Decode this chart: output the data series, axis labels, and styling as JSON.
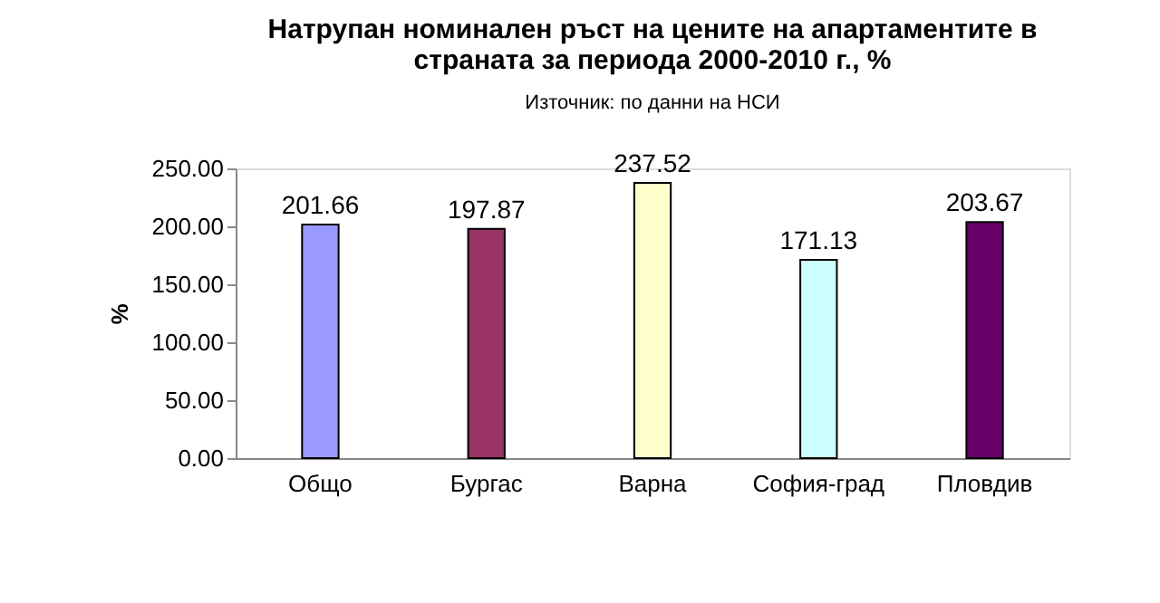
{
  "chart_data": {
    "type": "bar",
    "title": "Натрупан номинален ръст на цените на апартаментите в страната за периода 2000-2010 г., %",
    "subtitle": "Източник: по данни на НСИ",
    "ylabel": "%",
    "categories": [
      "Общо",
      "Бургас",
      "Варна",
      "София-град",
      "Пловдив"
    ],
    "values": [
      201.66,
      197.87,
      237.52,
      171.13,
      203.67
    ],
    "colors": [
      "#9999ff",
      "#993366",
      "#ffffcc",
      "#ccffff",
      "#660066"
    ],
    "ylim": [
      0,
      250
    ],
    "yticks": [
      {
        "value": 0,
        "label": "0.00"
      },
      {
        "value": 50,
        "label": "50.00"
      },
      {
        "value": 100,
        "label": "100.00"
      },
      {
        "value": 150,
        "label": "150.00"
      },
      {
        "value": 200,
        "label": "200.00"
      },
      {
        "value": 250,
        "label": "250.00"
      }
    ],
    "data_labels": true,
    "grid": false
  }
}
